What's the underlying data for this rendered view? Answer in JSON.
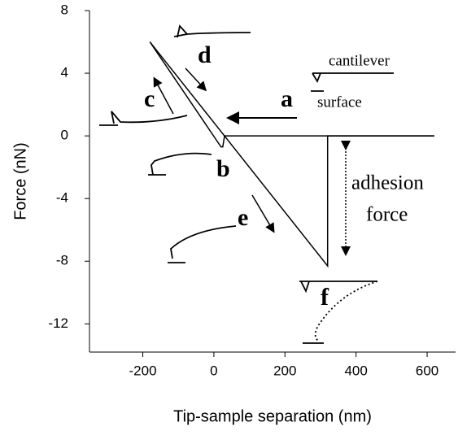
{
  "chart_data": {
    "type": "line",
    "xlabel": "Tip-sample separation (nm)",
    "ylabel": "Force (nN)",
    "xlim": [
      -350,
      680
    ],
    "ylim": [
      -13.8,
      8
    ],
    "xticks": [
      -200,
      0,
      200,
      400,
      600
    ],
    "yticks": [
      -12,
      -8,
      -4,
      0,
      4,
      8
    ],
    "grid": false,
    "series": [
      {
        "color": "#000000",
        "x": [
          -180,
          20,
          25,
          30,
          620
        ],
        "values": [
          6,
          -0.7,
          -0.7,
          0,
          0
        ]
      },
      {
        "color": "#000000",
        "x": [
          -180,
          320,
          320,
          620
        ],
        "values": [
          6,
          -8.3,
          0,
          0
        ]
      }
    ],
    "annotations": [
      "a",
      "b",
      "c",
      "d",
      "e",
      "f",
      "cantilever",
      "surface",
      "adhesion",
      "force"
    ]
  }
}
